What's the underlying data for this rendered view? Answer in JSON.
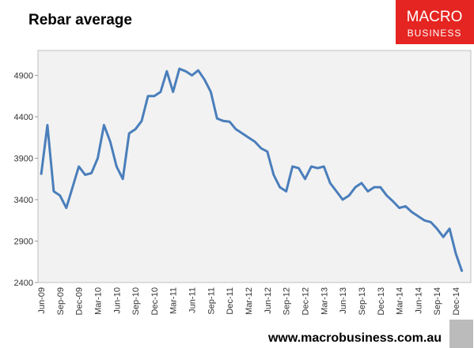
{
  "chart_data": {
    "type": "line",
    "title": "Rebar average",
    "logo": [
      "MACRO",
      "BUSINESS"
    ],
    "footer": "www.macrobusiness.com.au",
    "categories": [
      "Jun-09",
      null,
      null,
      "Sep-09",
      null,
      null,
      "Dec-09",
      null,
      null,
      "Mar-10",
      null,
      null,
      "Jun-10",
      null,
      null,
      "Sep-10",
      null,
      null,
      "Dec-10",
      null,
      null,
      "Mar-11",
      null,
      null,
      "Jun-11",
      null,
      null,
      "Sep-11",
      null,
      null,
      "Dec-11",
      null,
      null,
      "Mar-12",
      null,
      null,
      "Jun-12",
      null,
      null,
      "Sep-12",
      null,
      null,
      "Dec-12",
      null,
      null,
      "Mar-13",
      null,
      null,
      "Jun-13",
      null,
      null,
      "Sep-13",
      null,
      null,
      "Dec-13",
      null,
      null,
      "Mar-14",
      null,
      null,
      "Jun-14",
      null,
      null,
      "Sep-14",
      null,
      null,
      "Dec-14",
      null
    ],
    "series": [
      {
        "name": "Rebar average",
        "color": "#4a7ebb",
        "values": [
          3700,
          4300,
          3500,
          3450,
          3300,
          3550,
          3800,
          3700,
          3720,
          3900,
          4300,
          4100,
          3800,
          3650,
          4200,
          4250,
          4350,
          4650,
          4650,
          4700,
          4950,
          4700,
          4980,
          4950,
          4900,
          4960,
          4850,
          4700,
          4380,
          4350,
          4340,
          4250,
          4200,
          4150,
          4100,
          4020,
          3980,
          3700,
          3550,
          3500,
          3800,
          3780,
          3650,
          3800,
          3780,
          3800,
          3600,
          3500,
          3400,
          3450,
          3550,
          3600,
          3500,
          3550,
          3550,
          3450,
          3380,
          3300,
          3320,
          3250,
          3200,
          3150,
          3130,
          3050,
          2950,
          3050,
          2750,
          2530
        ]
      }
    ],
    "ylim": [
      2400,
      5200
    ],
    "yticks": [
      2400,
      2900,
      3400,
      3900,
      4400,
      4900
    ],
    "grid": false
  }
}
